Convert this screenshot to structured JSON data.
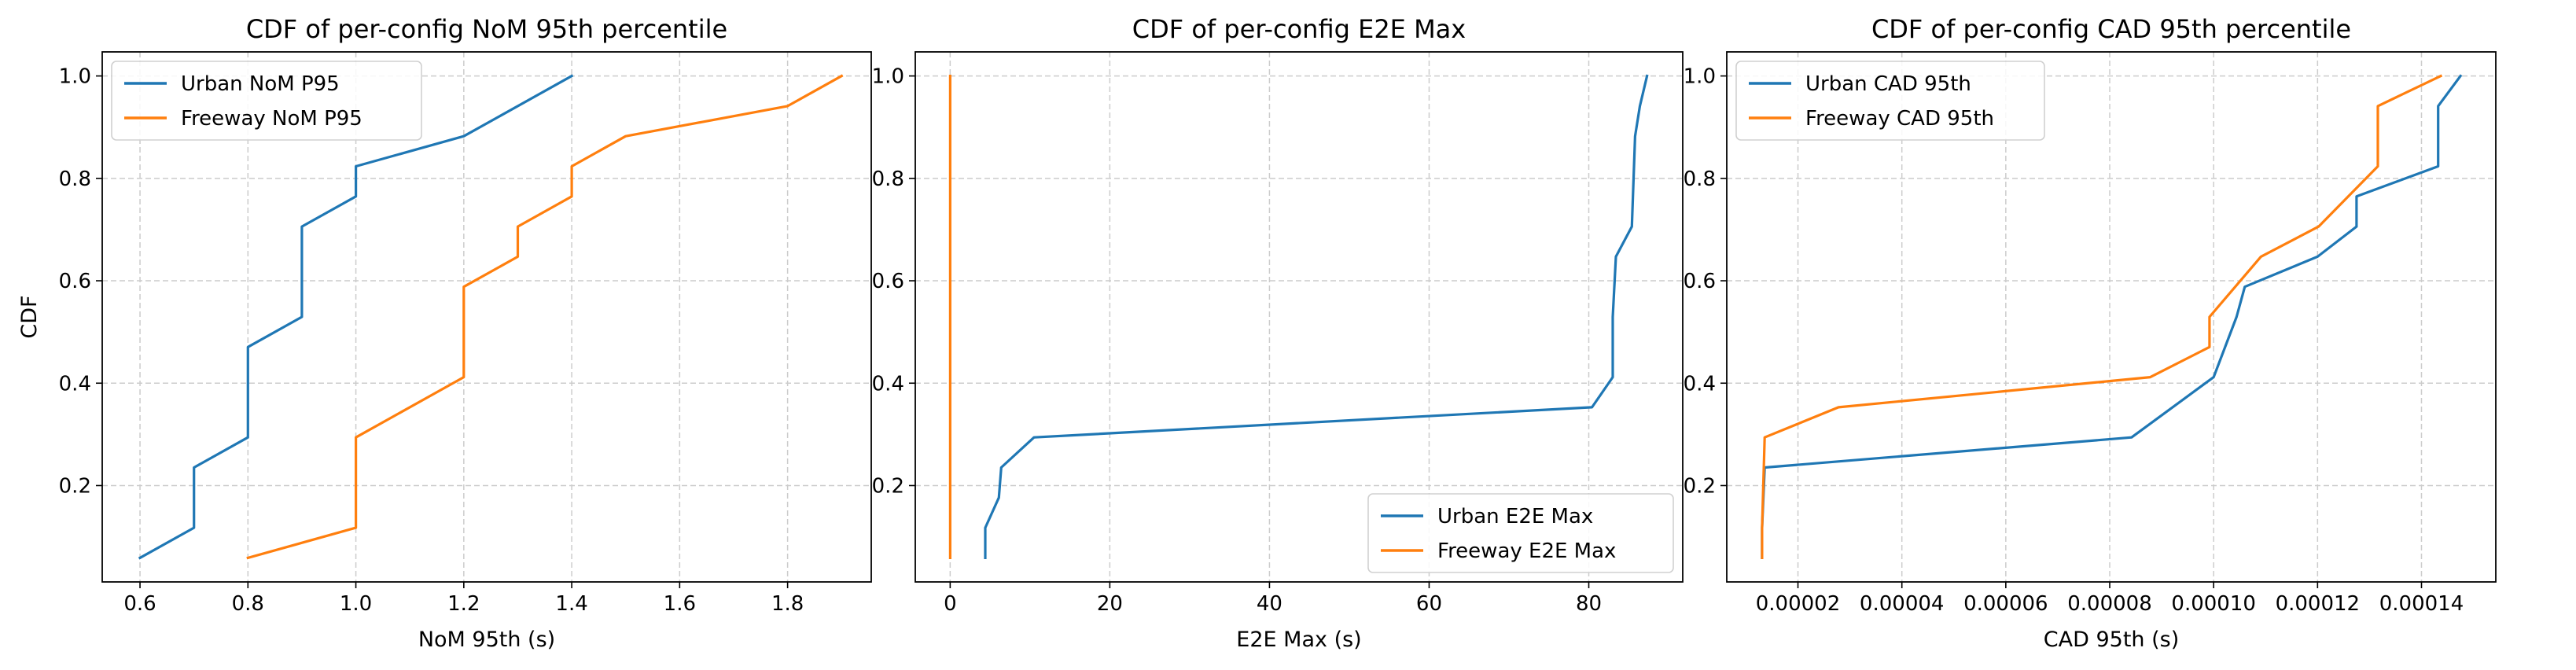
{
  "figure": {
    "shared_ylabel": "CDF",
    "colors": {
      "Urban": "#1f77b4",
      "Freeway": "#ff7f0e",
      "grid": "#cccccc",
      "axes": "#000000"
    }
  },
  "chart_data": [
    {
      "type": "line",
      "title": "CDF of per-config NoM 95th percentile",
      "xlabel": "NoM 95th (s)",
      "ylabel": "CDF",
      "xlim": [
        0.53,
        1.955
      ],
      "ylim": [
        0.0118,
        1.047
      ],
      "xticks": [
        0.6,
        0.8,
        1.0,
        1.2,
        1.4,
        1.6,
        1.8
      ],
      "xtick_labels": [
        "0.6",
        "0.8",
        "1.0",
        "1.2",
        "1.4",
        "1.6",
        "1.8"
      ],
      "yticks": [
        0.2,
        0.4,
        0.6,
        0.8,
        1.0
      ],
      "ytick_labels": [
        "0.2",
        "0.4",
        "0.6",
        "0.8",
        "1.0"
      ],
      "grid": true,
      "legend": "upper left",
      "series": [
        {
          "name": "Urban NoM P95",
          "color": "#1f77b4",
          "x": [
            0.6,
            0.7,
            0.7,
            0.8,
            0.8,
            0.9,
            0.9,
            1.0,
            1.0,
            1.2,
            1.4
          ],
          "y": [
            0.0588,
            0.1176,
            0.2353,
            0.2941,
            0.4706,
            0.5294,
            0.7059,
            0.7647,
            0.8235,
            0.8824,
            1.0
          ]
        },
        {
          "name": "Freeway NoM P95",
          "color": "#ff7f0e",
          "x": [
            0.8,
            1.0,
            1.0,
            1.2,
            1.2,
            1.3,
            1.3,
            1.4,
            1.4,
            1.5,
            1.8,
            1.9
          ],
          "y": [
            0.0588,
            0.1176,
            0.2941,
            0.4118,
            0.5882,
            0.6471,
            0.7059,
            0.7647,
            0.8235,
            0.8824,
            0.9412,
            1.0
          ]
        }
      ]
    },
    {
      "type": "line",
      "title": "CDF of per-config E2E Max",
      "xlabel": "E2E Max (s)",
      "ylabel": "",
      "xlim": [
        -4.37,
        91.77
      ],
      "ylim": [
        0.0118,
        1.047
      ],
      "xticks": [
        0,
        20,
        40,
        60,
        80
      ],
      "xtick_labels": [
        "0",
        "20",
        "40",
        "60",
        "80"
      ],
      "yticks": [
        0.2,
        0.4,
        0.6,
        0.8,
        1.0
      ],
      "ytick_labels": [
        "0.2",
        "0.4",
        "0.6",
        "0.8",
        "1.0"
      ],
      "grid": true,
      "legend": "lower right",
      "series": [
        {
          "name": "Urban E2E Max",
          "color": "#1f77b4",
          "x": [
            4.4,
            4.4,
            6.1,
            6.4,
            10.5,
            80.4,
            83.0,
            83.0,
            83.2,
            83.4,
            85.4,
            85.8,
            86.4,
            87.3
          ],
          "y": [
            0.0588,
            0.1176,
            0.1765,
            0.2353,
            0.2941,
            0.3529,
            0.4118,
            0.5294,
            0.5882,
            0.6471,
            0.7059,
            0.8824,
            0.9412,
            1.0
          ]
        },
        {
          "name": "Freeway E2E Max",
          "color": "#ff7f0e",
          "x": [
            0,
            0
          ],
          "y": [
            0.0588,
            1.0
          ]
        }
      ]
    },
    {
      "type": "line",
      "title": "CDF of per-config CAD 95th percentile",
      "xlabel": "CAD 95th (s)",
      "ylabel": "",
      "xlim": [
        6.3e-06,
        0.0001543
      ],
      "ylim": [
        0.0118,
        1.047
      ],
      "xticks": [
        2e-05,
        4e-05,
        6e-05,
        8e-05,
        0.0001,
        0.00012,
        0.00014
      ],
      "xtick_labels": [
        "0.00002",
        "0.00004",
        "0.00006",
        "0.00008",
        "0.00010",
        "0.00012",
        "0.00014"
      ],
      "yticks": [
        0.2,
        0.4,
        0.6,
        0.8,
        1.0
      ],
      "ytick_labels": [
        "0.2",
        "0.4",
        "0.6",
        "0.8",
        "1.0"
      ],
      "grid": true,
      "legend": "upper left",
      "series": [
        {
          "name": "Urban CAD 95th",
          "color": "#1f77b4",
          "x": [
            1.31e-05,
            1.31e-05,
            1.36e-05,
            8.42e-05,
            0.0001,
            0.0001044,
            0.000106,
            0.00012,
            0.0001275,
            0.0001275,
            0.0001432,
            0.0001432,
            0.0001475
          ],
          "y": [
            0.0588,
            0.1176,
            0.2353,
            0.2941,
            0.4118,
            0.5294,
            0.5882,
            0.6471,
            0.7059,
            0.7647,
            0.8235,
            0.9412,
            1.0
          ]
        },
        {
          "name": "Freeway CAD 95th",
          "color": "#ff7f0e",
          "x": [
            1.31e-05,
            1.31e-05,
            1.36e-05,
            2.78e-05,
            8.78e-05,
            9.92e-05,
            9.92e-05,
            0.0001091,
            0.0001202,
            0.0001316,
            0.0001316,
            0.0001437
          ],
          "y": [
            0.0588,
            0.1176,
            0.2941,
            0.3529,
            0.4118,
            0.4706,
            0.5294,
            0.6471,
            0.7059,
            0.8235,
            0.9412,
            1.0
          ]
        }
      ]
    }
  ]
}
